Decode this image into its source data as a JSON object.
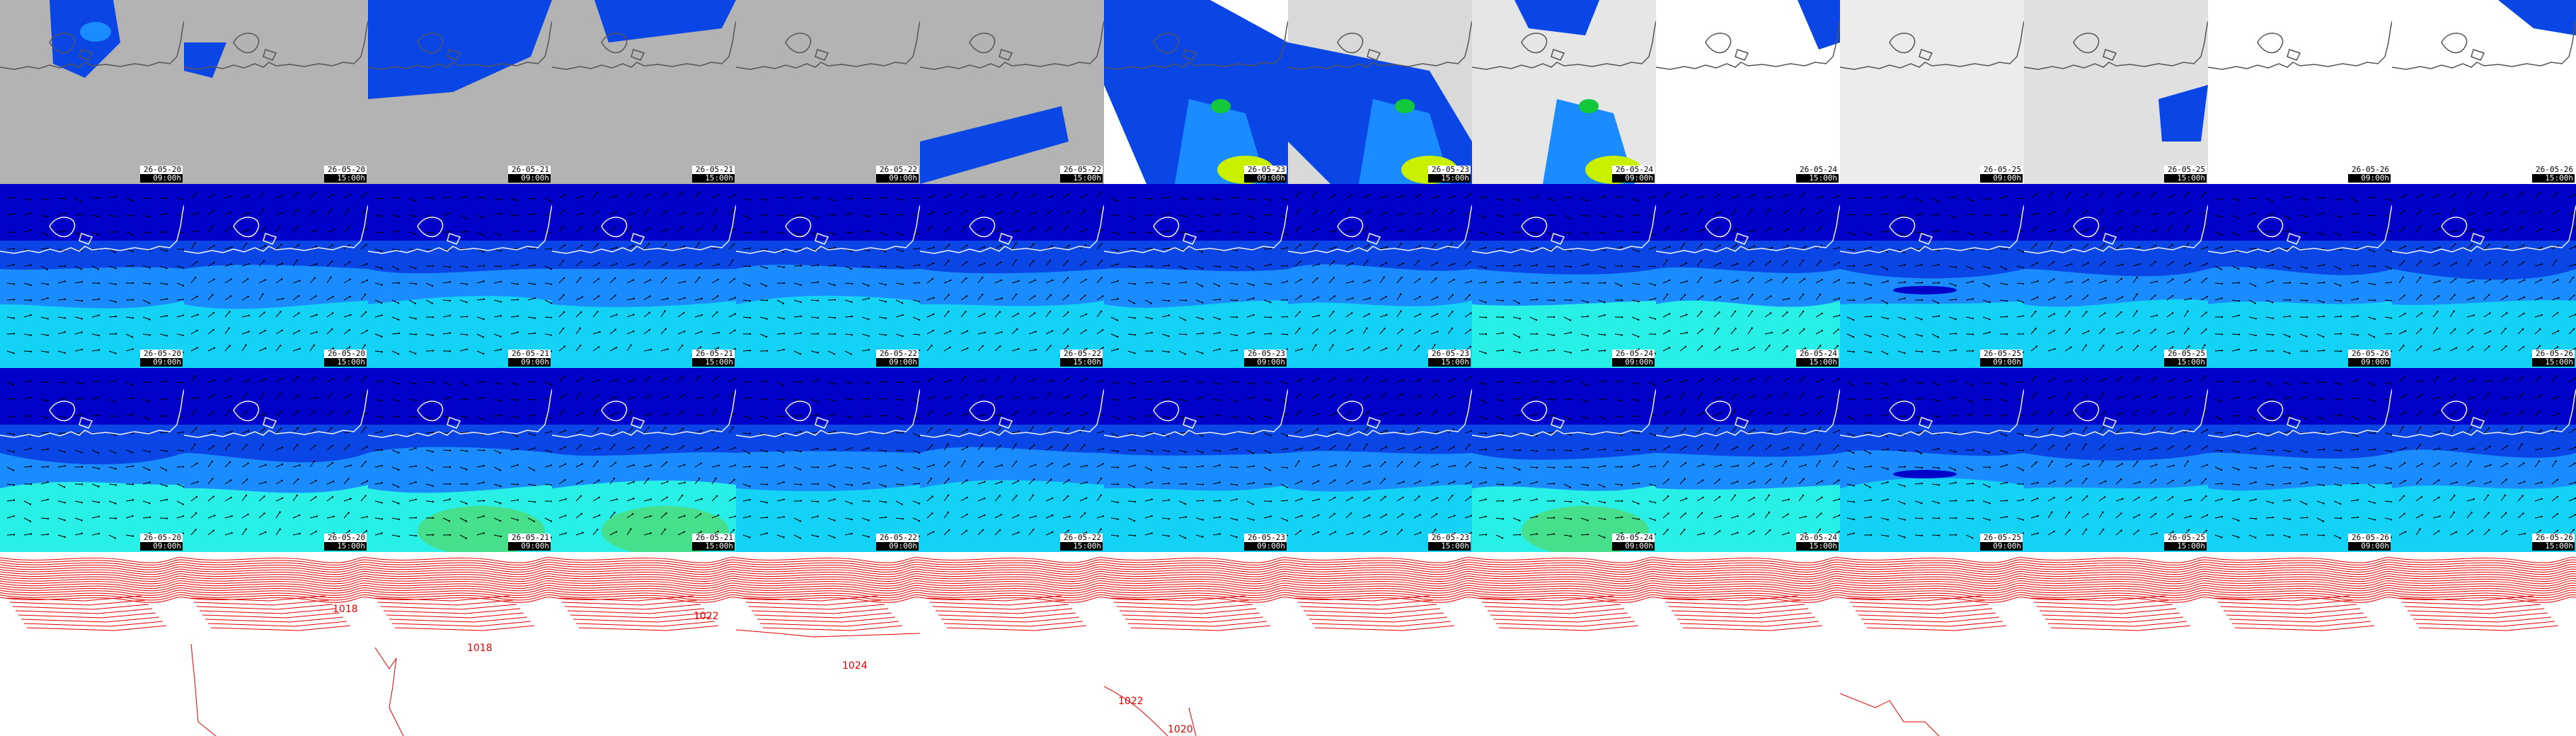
{
  "colors": {
    "land_gray": "#b3b3b3",
    "sea_deep": "#0000c8",
    "sea_blue": "#0a46e6",
    "sea_mid": "#1a8cff",
    "sea_cyan": "#14d2f5",
    "sea_light": "#28f0e6",
    "sea_green": "#46e08c",
    "contour_red": "#e00000",
    "coast_white": "#f0f0f0"
  },
  "frames": [
    {
      "date": "26-05-20",
      "time": "09:00h"
    },
    {
      "date": "26-05-20",
      "time": "15:00h"
    },
    {
      "date": "26-05-21",
      "time": "09:00h"
    },
    {
      "date": "26-05-21",
      "time": "15:00h"
    },
    {
      "date": "26-05-22",
      "time": "09:00h"
    },
    {
      "date": "26-05-22",
      "time": "15:00h"
    },
    {
      "date": "26-05-23",
      "time": "09:00h"
    },
    {
      "date": "26-05-23",
      "time": "15:00h"
    },
    {
      "date": "26-05-24",
      "time": "09:00h"
    },
    {
      "date": "26-05-24",
      "time": "15:00h"
    },
    {
      "date": "26-05-25",
      "time": "09:00h"
    },
    {
      "date": "26-05-25",
      "time": "15:00h"
    },
    {
      "date": "26-05-26",
      "time": "09:00h"
    },
    {
      "date": "26-05-26",
      "time": "15:00h"
    }
  ],
  "rows": [
    {
      "name": "precipitation-row"
    },
    {
      "name": "wind-row-a"
    },
    {
      "name": "wind-row-b"
    },
    {
      "name": "pressure-row"
    }
  ],
  "pressure_labels": [
    {
      "frame": 1,
      "text": "1018"
    },
    {
      "frame": 2,
      "text": "1018"
    },
    {
      "frame": 3,
      "text": "1022"
    },
    {
      "frame": 4,
      "text": "1024"
    },
    {
      "frame": 6,
      "text": "1022"
    },
    {
      "frame": 6,
      "text": "1020"
    }
  ]
}
